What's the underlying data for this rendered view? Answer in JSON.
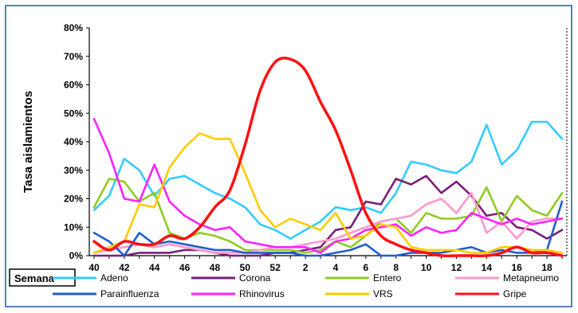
{
  "chart_data": {
    "type": "line",
    "title": "",
    "xlabel": "Semana",
    "ylabel": "Tasa aislamientos",
    "categories": [
      40,
      41,
      42,
      43,
      44,
      45,
      46,
      47,
      48,
      49,
      50,
      51,
      52,
      1,
      2,
      3,
      4,
      5,
      6,
      7,
      8,
      9,
      10,
      11,
      12,
      13,
      14,
      15,
      16,
      17,
      18,
      19
    ],
    "x_tick_labels": [
      "40",
      "42",
      "44",
      "46",
      "48",
      "50",
      "52",
      "2",
      "4",
      "6",
      "8",
      "10",
      "12",
      "14",
      "16",
      "18"
    ],
    "y_tick_labels": [
      "0%",
      "10%",
      "20%",
      "30%",
      "40%",
      "50%",
      "60%",
      "70%",
      "80%"
    ],
    "ylim": [
      0,
      80
    ],
    "grid": false,
    "legend_position": "bottom",
    "series": [
      {
        "name": "Adeno",
        "color": "#33ccff",
        "values": [
          16,
          21,
          34,
          30,
          21,
          27,
          28,
          25,
          22,
          20,
          17,
          11,
          9,
          6,
          9,
          12,
          17,
          16,
          17,
          15,
          22,
          33,
          32,
          30,
          29,
          33,
          46,
          32,
          37,
          47,
          47,
          41
        ]
      },
      {
        "name": "Corona",
        "color": "#7a1f7a",
        "values": [
          0,
          0,
          0,
          1,
          1,
          1,
          2,
          2,
          1,
          0,
          0,
          0,
          1,
          1,
          2,
          3,
          9,
          10,
          19,
          18,
          27,
          25,
          28,
          22,
          26,
          21,
          14,
          15,
          10,
          9,
          6,
          9
        ]
      },
      {
        "name": "Entero",
        "color": "#8fcc22",
        "values": [
          17,
          27,
          26,
          19,
          22,
          8,
          6,
          8,
          7,
          5,
          2,
          2,
          2,
          2,
          1,
          2,
          5,
          3,
          7,
          12,
          13,
          8,
          15,
          13,
          13,
          14,
          24,
          12,
          21,
          16,
          14,
          22
        ]
      },
      {
        "name": "Metapneumo",
        "color": "#ff99cc",
        "values": [
          1,
          2,
          3,
          4,
          3,
          4,
          3,
          2,
          1,
          1,
          1,
          2,
          3,
          3,
          4,
          5,
          6,
          8,
          10,
          12,
          13,
          14,
          18,
          20,
          15,
          22,
          8,
          12,
          6,
          12,
          13,
          13
        ]
      },
      {
        "name": "Parainfluenza",
        "color": "#1f5fcc",
        "values": [
          8,
          5,
          0,
          8,
          4,
          5,
          4,
          3,
          2,
          2,
          1,
          1,
          1,
          1,
          0,
          0,
          1,
          2,
          4,
          0,
          0,
          1,
          1,
          1,
          2,
          3,
          1,
          2,
          1,
          1,
          2,
          19
        ]
      },
      {
        "name": "Rhinovirus",
        "color": "#ff22ff",
        "values": [
          48,
          36,
          20,
          19,
          32,
          19,
          14,
          11,
          9,
          10,
          5,
          4,
          3,
          3,
          3,
          1,
          5,
          6,
          9,
          10,
          11,
          7,
          10,
          8,
          9,
          15,
          13,
          11,
          13,
          11,
          12,
          13
        ]
      },
      {
        "name": "VRS",
        "color": "#ffcc00",
        "values": [
          1,
          3,
          5,
          18,
          17,
          31,
          38,
          43,
          41,
          41,
          29,
          16,
          10,
          13,
          11,
          9,
          15,
          6,
          7,
          11,
          10,
          3,
          2,
          2,
          2,
          1,
          1,
          3,
          3,
          2,
          2,
          1
        ]
      },
      {
        "name": "Gripe",
        "color": "#ff1111",
        "values": [
          5,
          2,
          5,
          4,
          4,
          7,
          6,
          10,
          17,
          23,
          39,
          58,
          68,
          69,
          65,
          54,
          44,
          30,
          15,
          7,
          4,
          2,
          1,
          0,
          0,
          0,
          0,
          1,
          3,
          1,
          1,
          0
        ]
      }
    ]
  }
}
